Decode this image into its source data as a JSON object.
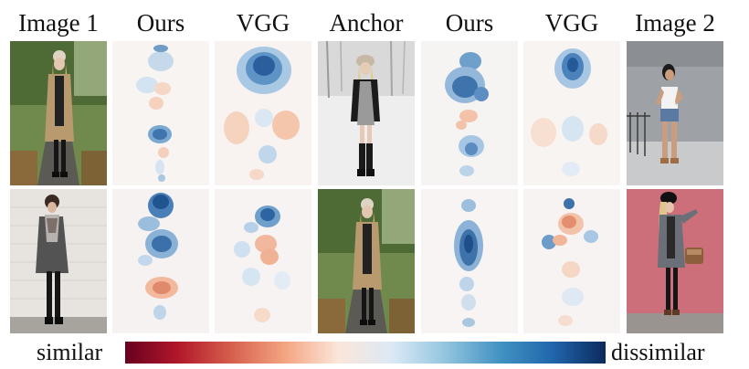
{
  "columns": [
    "Image 1",
    "Ours",
    "VGG",
    "Anchor",
    "Ours",
    "VGG",
    "Image 2"
  ],
  "rows": [
    {
      "image1": "woman in tan coat with beige beanie standing on park path",
      "anchor": "woman in black jacket and patterned dress in snowy woods",
      "image2": "woman in white top and denim shorts by concrete wall"
    },
    {
      "image1": "woman in gray coat and plaid scarf by white brick wall",
      "anchor": "woman in tan coat with beige beanie standing on park path",
      "image2": "woman in gray cardigan with brown handbag against pink wall"
    }
  ],
  "colorbar": {
    "left_label": "similar",
    "right_label": "dissimilar",
    "colors": [
      "#67001f",
      "#b2182b",
      "#d6604d",
      "#f4a582",
      "#fbe6da",
      "#dbe9f6",
      "#92c5de",
      "#4393c3",
      "#2166ac",
      "#0b2a5c"
    ]
  }
}
